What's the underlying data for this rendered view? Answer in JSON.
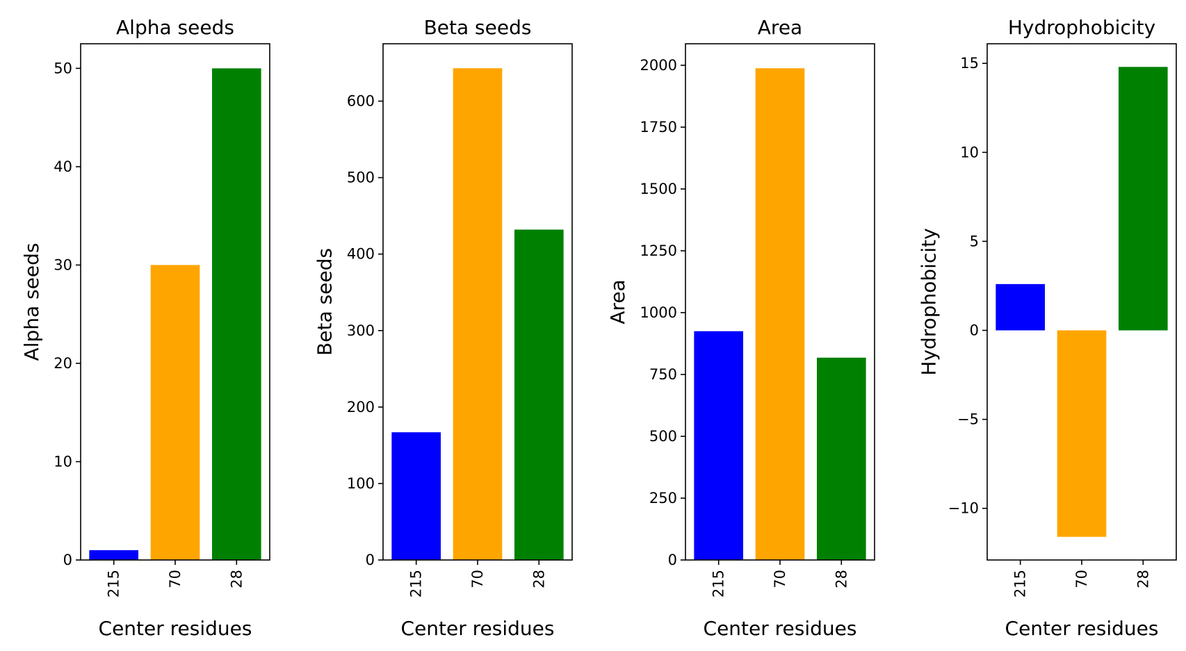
{
  "chart_data": [
    {
      "type": "bar",
      "title": "Alpha seeds",
      "xlabel": "Center residues",
      "ylabel": "Alpha seeds",
      "categories": [
        "215",
        "70",
        "28"
      ],
      "values": [
        1,
        30,
        50
      ],
      "colors": [
        "#0000ff",
        "#ffa500",
        "#008000"
      ],
      "ylim": [
        0,
        52.5
      ],
      "yticks": [
        0,
        10,
        20,
        30,
        40,
        50
      ],
      "ytick_labels": [
        "0",
        "10",
        "20",
        "30",
        "40",
        "50"
      ]
    },
    {
      "type": "bar",
      "title": "Beta seeds",
      "xlabel": "Center residues",
      "ylabel": "Beta seeds",
      "categories": [
        "215",
        "70",
        "28"
      ],
      "values": [
        167,
        643,
        432
      ],
      "colors": [
        "#0000ff",
        "#ffa500",
        "#008000"
      ],
      "ylim": [
        0,
        675
      ],
      "yticks": [
        0,
        100,
        200,
        300,
        400,
        500,
        600
      ],
      "ytick_labels": [
        "0",
        "100",
        "200",
        "300",
        "400",
        "500",
        "600"
      ]
    },
    {
      "type": "bar",
      "title": "Area",
      "xlabel": "Center residues",
      "ylabel": "Area",
      "categories": [
        "215",
        "70",
        "28"
      ],
      "values": [
        925,
        1988,
        818
      ],
      "colors": [
        "#0000ff",
        "#ffa500",
        "#008000"
      ],
      "ylim": [
        0,
        2087
      ],
      "yticks": [
        0,
        250,
        500,
        750,
        1000,
        1250,
        1500,
        1750,
        2000
      ],
      "ytick_labels": [
        "0",
        "250",
        "500",
        "750",
        "1000",
        "1250",
        "1500",
        "1750",
        "2000"
      ]
    },
    {
      "type": "bar",
      "title": "Hydrophobicity",
      "xlabel": "Center residues",
      "ylabel": "Hydrophobicity",
      "categories": [
        "215",
        "70",
        "28"
      ],
      "values": [
        2.6,
        -11.6,
        14.8
      ],
      "colors": [
        "#0000ff",
        "#ffa500",
        "#008000"
      ],
      "ylim": [
        -12.9,
        16.1
      ],
      "yticks": [
        -10,
        -5,
        0,
        5,
        10,
        15
      ],
      "ytick_labels": [
        "−10",
        "−5",
        "0",
        "5",
        "10",
        "15"
      ]
    }
  ]
}
